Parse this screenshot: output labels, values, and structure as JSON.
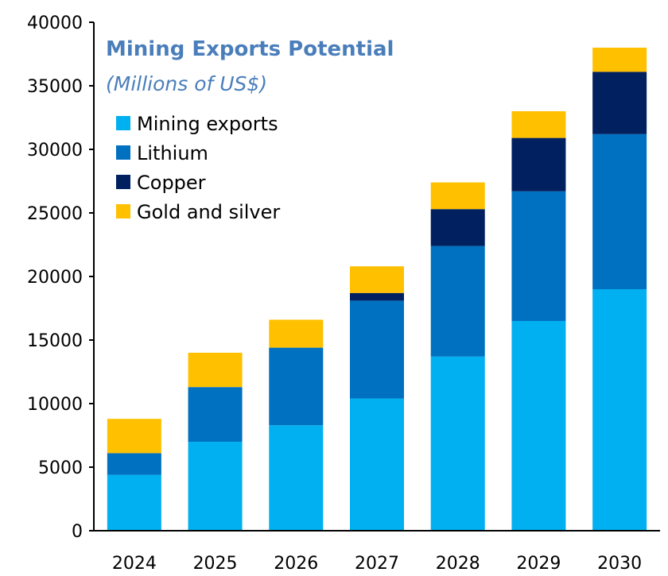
{
  "chart_data": {
    "type": "bar",
    "stacked": true,
    "title": "Mining Exports Potential",
    "subtitle": "(Millions of US$)",
    "categories": [
      "2024",
      "2025",
      "2026",
      "2027",
      "2028",
      "2029",
      "2030"
    ],
    "series": [
      {
        "name": "Mining exports",
        "color": "#00B0F0",
        "values": [
          4400,
          7000,
          8300,
          10400,
          13700,
          16500,
          19000
        ]
      },
      {
        "name": "Lithium",
        "color": "#0070C0",
        "values": [
          1700,
          4300,
          6100,
          7700,
          8700,
          10200,
          12200
        ]
      },
      {
        "name": "Copper",
        "color": "#002060",
        "values": [
          0,
          0,
          0,
          600,
          2900,
          4200,
          4900
        ]
      },
      {
        "name": "Gold and silver",
        "color": "#FFC000",
        "values": [
          2700,
          2700,
          2200,
          2100,
          2100,
          2100,
          1900
        ]
      }
    ],
    "ylim": [
      0,
      40000
    ],
    "yticks": [
      0,
      5000,
      10000,
      15000,
      20000,
      25000,
      30000,
      35000,
      40000
    ],
    "xlabel": "",
    "ylabel": "",
    "legend_position": "top-left",
    "title_color": "#4A7EBB",
    "grid": false
  }
}
